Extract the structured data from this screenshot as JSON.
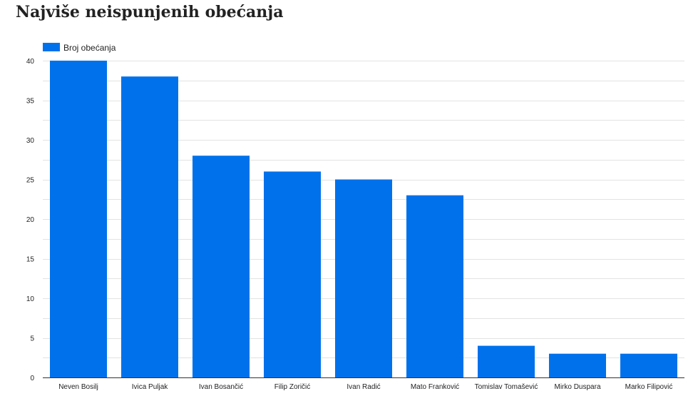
{
  "title": "Najviše neispunjenih obećanja",
  "colors": {
    "bar": "#0071EB",
    "grid": "#e3e3e3",
    "axis": "#333333"
  },
  "chart_data": {
    "type": "bar",
    "title": "Najviše neispunjenih obećanja",
    "xlabel": "",
    "ylabel": "",
    "categories": [
      "Neven Bosilj",
      "Ivica Puljak",
      "Ivan Bosančić",
      "Filip Zoričić",
      "Ivan Radić",
      "Mato Franković",
      "Tomislav Tomašević",
      "Mirko Duspara",
      "Marko Filipović"
    ],
    "series": [
      {
        "name": "Broj obećanja",
        "values": [
          40,
          38,
          28,
          26,
          25,
          23,
          4,
          3,
          3
        ]
      }
    ],
    "ylim": [
      0,
      40
    ],
    "yticks": [
      0,
      5,
      10,
      15,
      20,
      25,
      30,
      35,
      40
    ],
    "grid": true,
    "legend_position": "top-left"
  }
}
